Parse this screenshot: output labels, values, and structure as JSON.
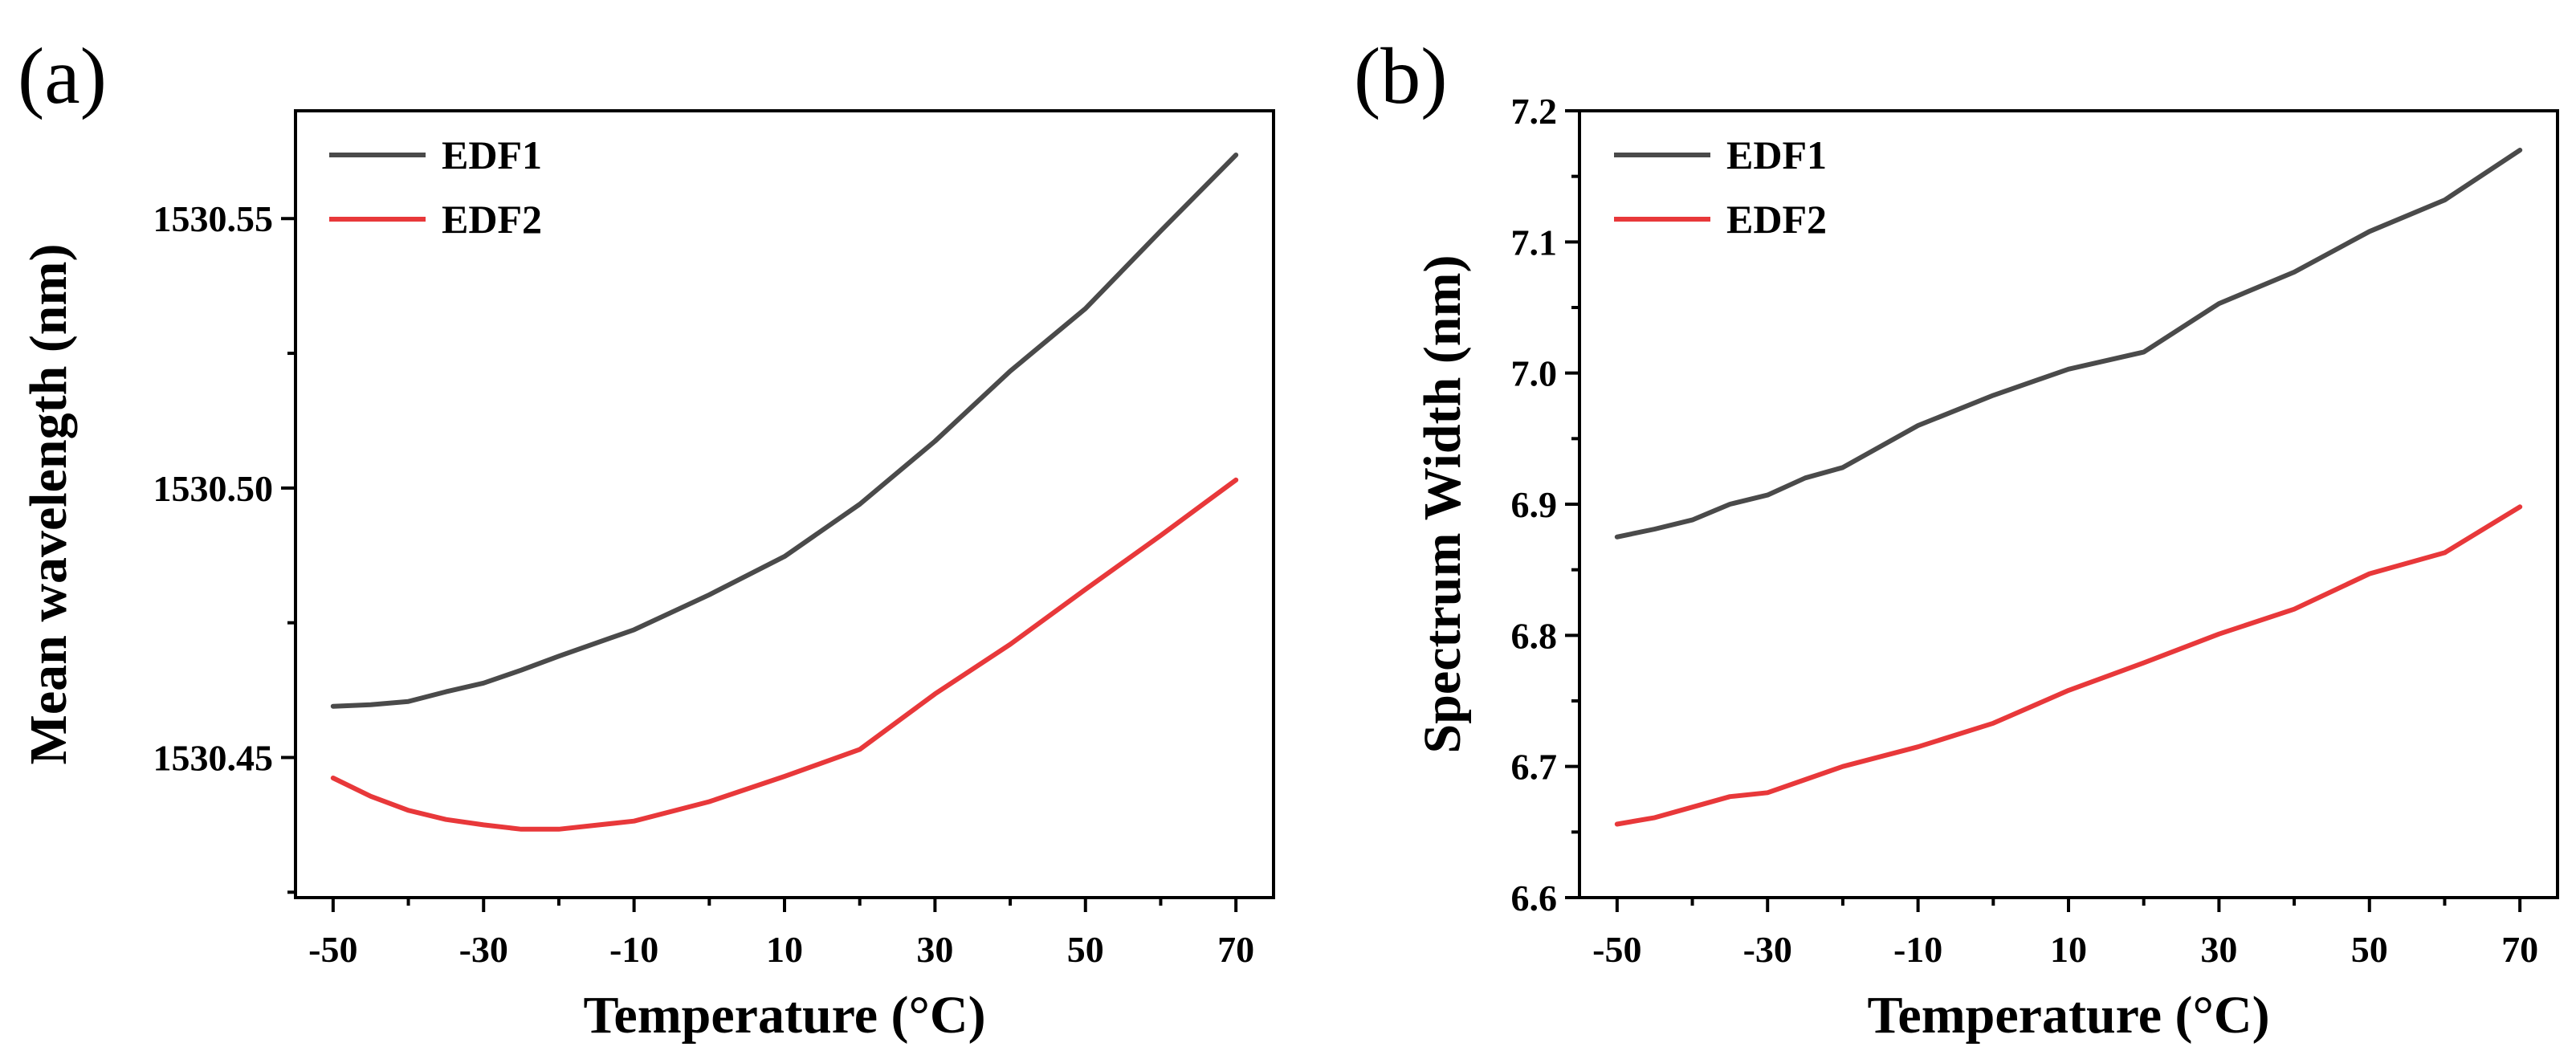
{
  "chart_data": [
    {
      "type": "line",
      "panel_label": "(a)",
      "xlabel": "Temperature (°C)",
      "ylabel": "Mean wavelength (nm)",
      "xlim": [
        -55,
        75
      ],
      "ylim": [
        1530.424,
        1530.57
      ],
      "xticks": [
        -50,
        -30,
        -10,
        10,
        30,
        50,
        70
      ],
      "xtick_labels": [
        "-50",
        "-30",
        "-10",
        "10",
        "30",
        "50",
        "70"
      ],
      "yticks": [
        1530.45,
        1530.5,
        1530.55
      ],
      "ytick_labels": [
        "1530.45",
        "1530.50",
        "1530.55"
      ],
      "legend_position": "top-left",
      "grid": false,
      "series": [
        {
          "name": "EDF1",
          "color": "#4a4a4a",
          "x": [
            -50,
            -45,
            -40,
            -35,
            -30,
            -25,
            -20,
            -10,
            0,
            10,
            20,
            30,
            40,
            50,
            60,
            70
          ],
          "y": [
            1530.4595,
            1530.4598,
            1530.4604,
            1530.4622,
            1530.4638,
            1530.4662,
            1530.4688,
            1530.4737,
            1530.4802,
            1530.4873,
            1530.497,
            1530.5087,
            1530.5217,
            1530.5333,
            1530.5477,
            1530.5618
          ]
        },
        {
          "name": "EDF2",
          "color": "#e8383a",
          "x": [
            -50,
            -45,
            -40,
            -35,
            -30,
            -25,
            -20,
            -10,
            0,
            10,
            20,
            30,
            40,
            50,
            60,
            70
          ],
          "y": [
            1530.4462,
            1530.4428,
            1530.4402,
            1530.4385,
            1530.4375,
            1530.4367,
            1530.4367,
            1530.4382,
            1530.4418,
            1530.4465,
            1530.4515,
            1530.4618,
            1530.471,
            1530.4812,
            1530.4912,
            1530.5015
          ]
        }
      ]
    },
    {
      "type": "line",
      "panel_label": "(b)",
      "xlabel": "Temperature (°C)",
      "ylabel": "Spectrum Width (nm)",
      "xlim": [
        -55,
        75
      ],
      "ylim": [
        6.6,
        7.2
      ],
      "xticks": [
        -50,
        -30,
        -10,
        10,
        30,
        50,
        70
      ],
      "xtick_labels": [
        "-50",
        "-30",
        "-10",
        "10",
        "30",
        "50",
        "70"
      ],
      "yticks": [
        6.6,
        6.7,
        6.8,
        6.9,
        7.0,
        7.1,
        7.2
      ],
      "ytick_labels": [
        "6.6",
        "6.7",
        "6.8",
        "6.9",
        "7.0",
        "7.1",
        "7.2"
      ],
      "legend_position": "top-left",
      "grid": false,
      "series": [
        {
          "name": "EDF1",
          "color": "#4a4a4a",
          "x": [
            -50,
            -45,
            -40,
            -35,
            -30,
            -25,
            -20,
            -10,
            0,
            10,
            20,
            30,
            40,
            50,
            60,
            70
          ],
          "y": [
            6.875,
            6.881,
            6.888,
            6.9,
            6.907,
            6.92,
            6.928,
            6.96,
            6.983,
            7.003,
            7.016,
            7.053,
            7.077,
            7.108,
            7.132,
            7.17
          ]
        },
        {
          "name": "EDF2",
          "color": "#e8383a",
          "x": [
            -50,
            -45,
            -40,
            -35,
            -30,
            -25,
            -20,
            -10,
            0,
            10,
            20,
            30,
            40,
            50,
            60,
            70
          ],
          "y": [
            6.656,
            6.661,
            6.669,
            6.677,
            6.68,
            6.69,
            6.7,
            6.715,
            6.733,
            6.758,
            6.779,
            6.801,
            6.82,
            6.847,
            6.863,
            6.898
          ]
        }
      ]
    }
  ]
}
